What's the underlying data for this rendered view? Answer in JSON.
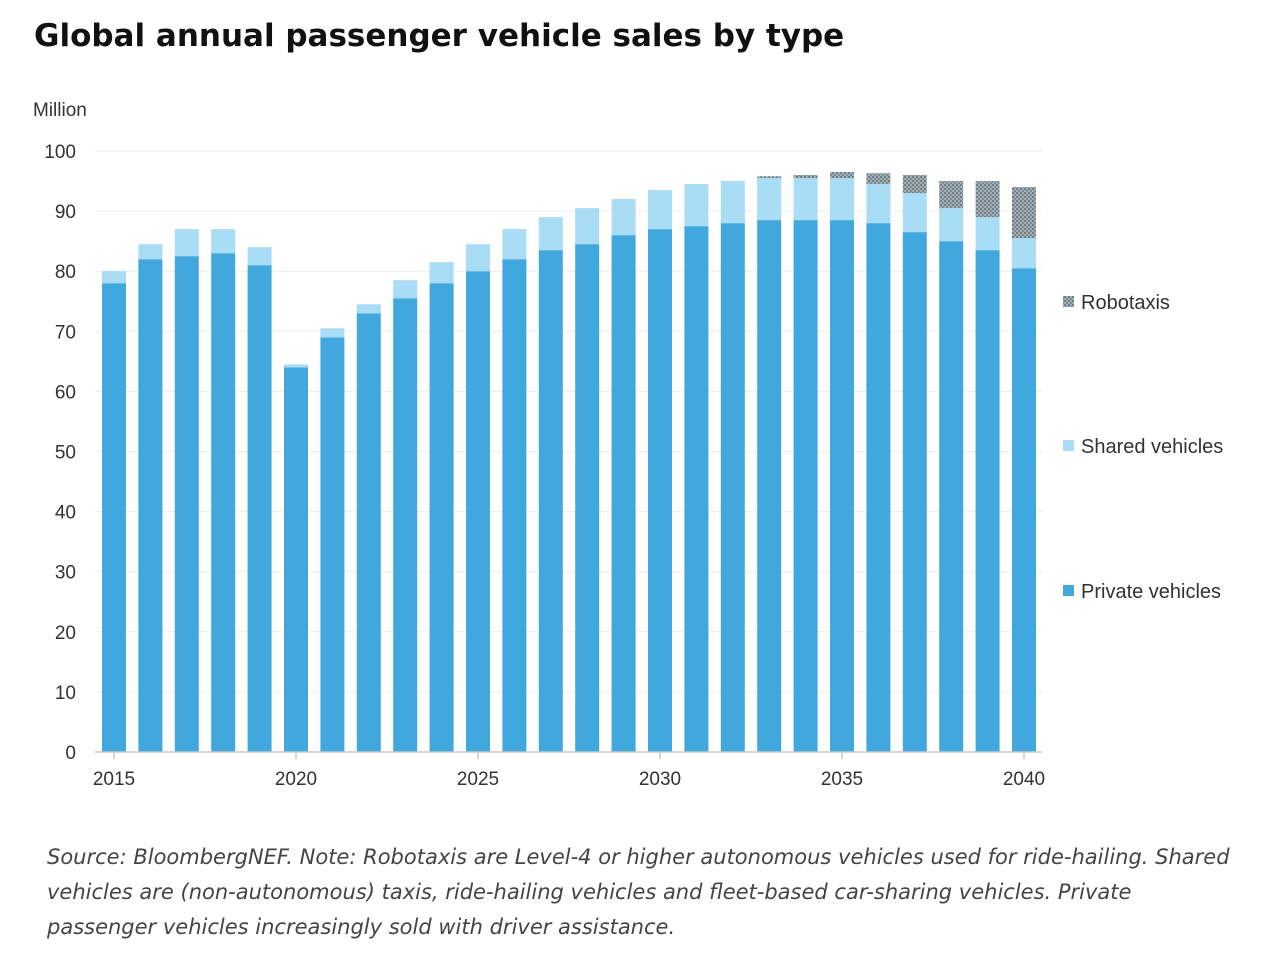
{
  "title": "Global annual passenger vehicle sales by type",
  "source_note": "Source: BloombergNEF. Note: Robotaxis are Level-4 or higher autonomous vehicles used for ride-hailing. Shared vehicles are (non-autonomous) taxis, ride-hailing vehicles and fleet-based car-sharing vehicles. Private passenger vehicles increasingly sold with driver assistance.",
  "colors": {
    "private": "#41a8de",
    "shared": "#a9dcf5",
    "robotaxi": "#8e9ba2",
    "axis": "#c8c8c8"
  },
  "chart_data": {
    "type": "bar",
    "stacked": true,
    "title": "Global annual passenger vehicle sales by type",
    "ylabel": "Million",
    "ylim": [
      0,
      100
    ],
    "yticks": [
      0,
      10,
      20,
      30,
      40,
      50,
      60,
      70,
      80,
      90,
      100
    ],
    "xtick_labels": [
      "2015",
      "2020",
      "2025",
      "2030",
      "2035",
      "2040"
    ],
    "legend_position": "right",
    "categories": [
      2015,
      2016,
      2017,
      2018,
      2019,
      2020,
      2021,
      2022,
      2023,
      2024,
      2025,
      2026,
      2027,
      2028,
      2029,
      2030,
      2031,
      2032,
      2033,
      2034,
      2035,
      2036,
      2037,
      2038,
      2039,
      2040
    ],
    "series": [
      {
        "name": "Private vehicles",
        "values": [
          78,
          82,
          82.5,
          83,
          81,
          64,
          69,
          73,
          75.5,
          78,
          80,
          82,
          83.5,
          84.5,
          86,
          87,
          87.5,
          88,
          88.5,
          88.5,
          88.5,
          88,
          86.5,
          85,
          83.5,
          80.5
        ]
      },
      {
        "name": "Shared vehicles",
        "values": [
          2,
          2.5,
          4.5,
          4,
          3,
          0.5,
          1.5,
          1.5,
          3,
          3.5,
          4.5,
          5,
          5.5,
          6,
          6,
          6.5,
          7,
          7,
          7,
          7,
          7,
          6.5,
          6.5,
          5.5,
          5.5,
          5
        ]
      },
      {
        "name": "Robotaxis",
        "values": [
          0,
          0,
          0,
          0,
          0,
          0,
          0,
          0,
          0,
          0,
          0,
          0,
          0,
          0,
          0,
          0,
          0,
          0,
          0.3,
          0.5,
          1,
          1.8,
          3,
          4.5,
          6,
          8.5
        ]
      }
    ]
  }
}
